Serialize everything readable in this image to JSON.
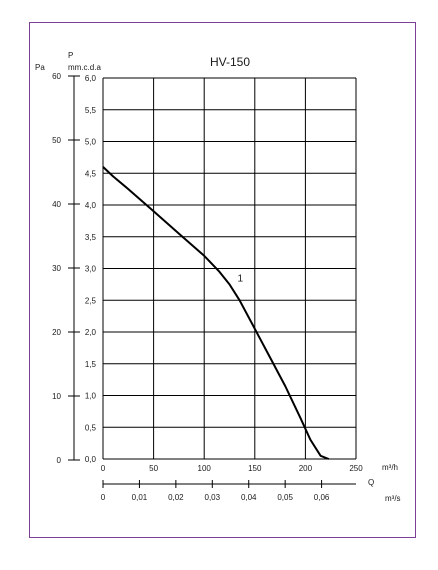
{
  "chart_data": {
    "type": "line",
    "title": "HV-150",
    "left_axis": {
      "label": "Pa",
      "ticks": [
        "0",
        "10",
        "20",
        "30",
        "40",
        "50",
        "60"
      ],
      "tick_values": [
        0,
        10,
        20,
        30,
        40,
        50,
        60
      ]
    },
    "right_axis": {
      "label": "P",
      "sublabel": "mm.c.d.a",
      "ticks": [
        "0,0",
        "0,5",
        "1,0",
        "1,5",
        "2,0",
        "2,5",
        "3,0",
        "3,5",
        "4,0",
        "4,5",
        "5,0",
        "5,5",
        "6,0"
      ],
      "ylim": [
        0,
        6.0
      ]
    },
    "x_axis": {
      "unit": "m³/h",
      "ticks": [
        "0",
        "50",
        "100",
        "150",
        "200",
        "250"
      ],
      "xlim": [
        0,
        250
      ]
    },
    "x2_axis": {
      "unit": "m³/s",
      "ticks": [
        "0",
        "0,01",
        "0,02",
        "0,03",
        "0,04",
        "0,05",
        "0,06"
      ],
      "tick_values": [
        0,
        0.01,
        0.02,
        0.03,
        0.04,
        0.05,
        0.06
      ]
    },
    "q_label": "Q",
    "grid": true,
    "series": [
      {
        "name": "1",
        "x": [
          0,
          10,
          25,
          50,
          75,
          100,
          115,
          125,
          135,
          150,
          165,
          180,
          195,
          205,
          215,
          223
        ],
        "y": [
          4.6,
          4.45,
          4.25,
          3.9,
          3.55,
          3.2,
          2.95,
          2.75,
          2.5,
          2.05,
          1.6,
          1.15,
          0.65,
          0.3,
          0.05,
          0.0
        ]
      }
    ]
  }
}
